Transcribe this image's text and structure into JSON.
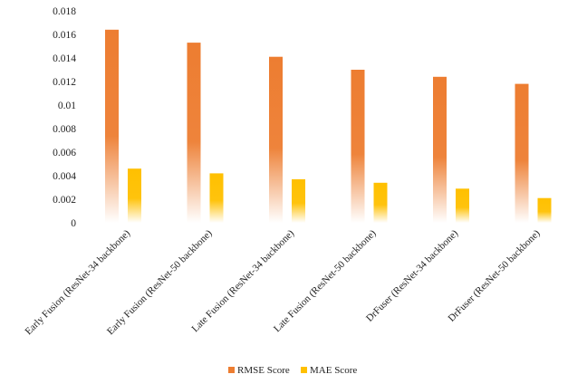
{
  "chart_data": {
    "type": "bar",
    "categories": [
      "Early Fusion (ResNet-34 backbone)",
      "Early Fusion (ResNet-50 backbone)",
      "Late Fusion (ResNet-34 backbone)",
      "Late Fusion (ResNet-50 backbone)",
      "DrFuser (ResNet-34 backbone)",
      "DrFuser (ResNet-50 backbone)"
    ],
    "series": [
      {
        "name": "RMSE Score",
        "values": [
          0.0164,
          0.0153,
          0.0141,
          0.013,
          0.0124,
          0.0118
        ],
        "color": "#ED7D31"
      },
      {
        "name": "MAE Score",
        "values": [
          0.0046,
          0.0042,
          0.0037,
          0.0034,
          0.0029,
          0.0021
        ],
        "color": "#FFC000"
      }
    ],
    "ylim": [
      0,
      0.018
    ],
    "yticks": [
      "0",
      "0.002",
      "0.004",
      "0.006",
      "0.008",
      "0.01",
      "0.012",
      "0.014",
      "0.016",
      "0.018"
    ],
    "grid": false,
    "legend_position": "bottom"
  }
}
